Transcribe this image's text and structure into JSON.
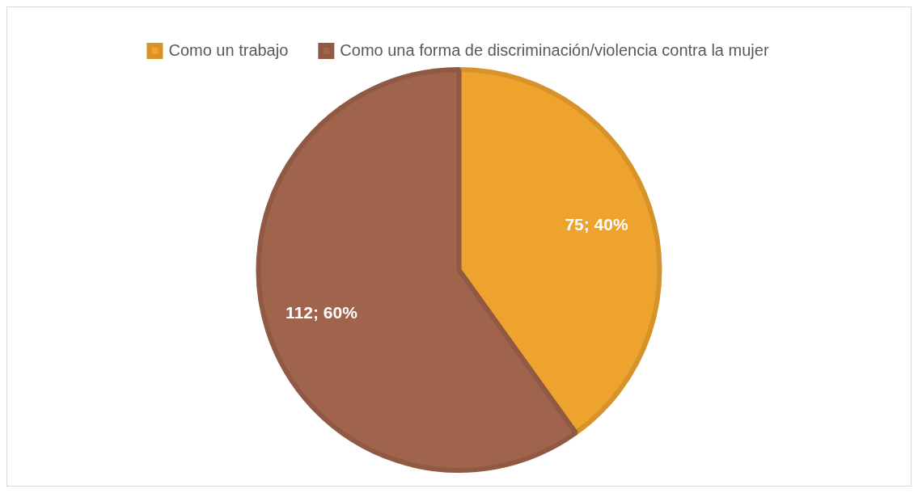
{
  "chart_data": {
    "type": "pie",
    "categories": [
      "Como un trabajo",
      "Como una forma de discriminación/violencia contra la mujer"
    ],
    "values": [
      75,
      112
    ],
    "colors": [
      "#eea32f",
      "#a0634c"
    ],
    "value_labels": [
      "75; 40%",
      "112; 60%"
    ],
    "legend": "top"
  }
}
